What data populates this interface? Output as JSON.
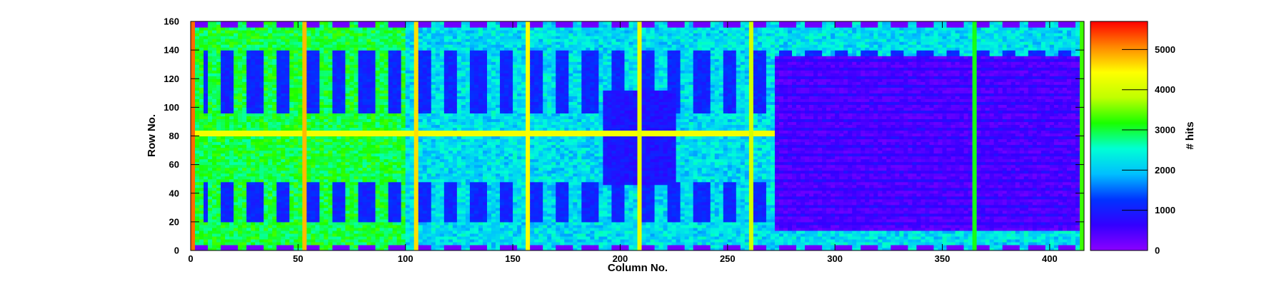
{
  "chart_data": {
    "type": "heatmap",
    "title": "",
    "xlabel": "Column No.",
    "ylabel": "Row No.",
    "zlabel": "# hits",
    "xlim": [
      0,
      416
    ],
    "ylim": [
      0,
      160
    ],
    "zlim": [
      0,
      5700
    ],
    "x_ticks": [
      0,
      50,
      100,
      150,
      200,
      250,
      300,
      350,
      400
    ],
    "y_ticks": [
      0,
      20,
      40,
      60,
      80,
      100,
      120,
      140,
      160
    ],
    "z_ticks": [
      0,
      1000,
      2000,
      3000,
      4000,
      5000
    ],
    "colormap": "rainbow",
    "colormap_stops": [
      "#8b00ff",
      "#3300ff",
      "#0033ff",
      "#00bfff",
      "#00ffd5",
      "#19ff00",
      "#bfff00",
      "#ffff00",
      "#ff8800",
      "#ff0000"
    ],
    "base_level_left": 3000,
    "base_level_center": 2200,
    "base_level_right_block": 400,
    "hot_columns": [
      {
        "column": 52,
        "hits": 4800
      },
      {
        "column": 104,
        "hits": 4600
      },
      {
        "column": 156,
        "hits": 4400
      },
      {
        "column": 208,
        "hits": 4200
      },
      {
        "column": 260,
        "hits": 4000
      },
      {
        "column": 364,
        "hits": 3100
      }
    ],
    "hot_row": {
      "row": 81,
      "hits": 4300
    },
    "edge_columns": [
      {
        "column": 0,
        "hits": 5200
      },
      {
        "column": 415,
        "hits": 3300
      }
    ],
    "low_region": {
      "x": [
        271,
        416
      ],
      "y": [
        13,
        136
      ],
      "hits": 500
    },
    "pad_row_levels": {
      "top_row": 159,
      "bottom_row": 3,
      "hits": 200
    }
  }
}
